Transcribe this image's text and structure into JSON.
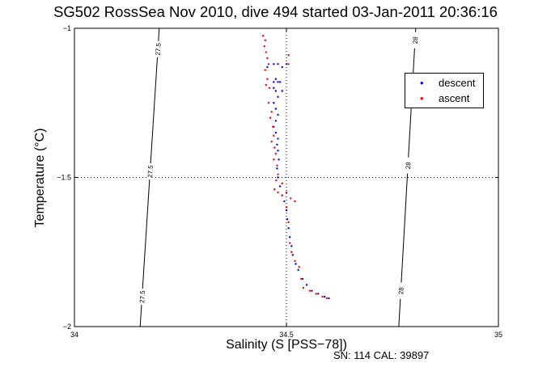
{
  "title": "SG502 RossSea Nov 2010, dive 494 started 03-Jan-2011 20:36:16",
  "footnote": "SN: 114  CAL: 39897",
  "chart_data": {
    "type": "scatter",
    "xlabel": "Salinity (S [PSS−78])",
    "ylabel": "Temperature (°C)",
    "xlim": [
      34,
      35
    ],
    "ylim": [
      -2,
      -1
    ],
    "xticks": [
      34,
      34.5,
      35
    ],
    "yticks": [
      -2,
      -1.5,
      -1
    ],
    "xtick_labels": [
      "34",
      "34.5",
      "35"
    ],
    "ytick_labels": [
      "−2",
      "−1.5",
      "−1"
    ],
    "grid": "dotted lines at x=34.5 and y=-1.5",
    "legend_position": "top-right",
    "density_contours": [
      {
        "label": "27.5",
        "points": [
          [
            34.155,
            -2
          ],
          [
            34.2,
            -1
          ]
        ],
        "label_y": [
          -1.07,
          -1.48,
          -1.9
        ]
      },
      {
        "label": "28",
        "points": [
          [
            34.765,
            -2
          ],
          [
            34.805,
            -1
          ]
        ],
        "label_y": [
          -1.04,
          -1.46,
          -1.88
        ]
      }
    ],
    "series": [
      {
        "name": "descent",
        "color": "#0000ff",
        "marker": ".",
        "points": [
          [
            34.455,
            -1.13
          ],
          [
            34.47,
            -1.12
          ],
          [
            34.48,
            -1.12
          ],
          [
            34.49,
            -1.13
          ],
          [
            34.5,
            -1.12
          ],
          [
            34.475,
            -1.17
          ],
          [
            34.47,
            -1.18
          ],
          [
            34.48,
            -1.18
          ],
          [
            34.485,
            -1.18
          ],
          [
            34.47,
            -1.2
          ],
          [
            34.475,
            -1.21
          ],
          [
            34.49,
            -1.21
          ],
          [
            34.48,
            -1.23
          ],
          [
            34.47,
            -1.25
          ],
          [
            34.475,
            -1.27
          ],
          [
            34.48,
            -1.29
          ],
          [
            34.475,
            -1.31
          ],
          [
            34.47,
            -1.33
          ],
          [
            34.475,
            -1.35
          ],
          [
            34.48,
            -1.37
          ],
          [
            34.478,
            -1.39
          ],
          [
            34.48,
            -1.41
          ],
          [
            34.482,
            -1.44
          ],
          [
            34.478,
            -1.47
          ],
          [
            34.48,
            -1.5
          ],
          [
            34.485,
            -1.53
          ],
          [
            34.49,
            -1.56
          ],
          [
            34.495,
            -1.58
          ],
          [
            34.5,
            -1.61
          ],
          [
            34.502,
            -1.64
          ],
          [
            34.505,
            -1.67
          ],
          [
            34.508,
            -1.7
          ],
          [
            34.512,
            -1.73
          ],
          [
            34.515,
            -1.76
          ],
          [
            34.522,
            -1.79
          ],
          [
            34.528,
            -1.81
          ],
          [
            34.538,
            -1.84
          ],
          [
            34.548,
            -1.86
          ],
          [
            34.56,
            -1.88
          ],
          [
            34.575,
            -1.89
          ],
          [
            34.59,
            -1.9
          ],
          [
            34.6,
            -1.905
          ]
        ]
      },
      {
        "name": "ascent",
        "color": "#ff0000",
        "marker": ".",
        "points": [
          [
            34.445,
            -1.025
          ],
          [
            34.45,
            -1.04
          ],
          [
            34.448,
            -1.06
          ],
          [
            34.452,
            -1.08
          ],
          [
            34.455,
            -1.1
          ],
          [
            34.458,
            -1.12
          ],
          [
            34.45,
            -1.14
          ],
          [
            34.455,
            -1.17
          ],
          [
            34.452,
            -1.19
          ],
          [
            34.46,
            -1.2
          ],
          [
            34.505,
            -1.09
          ],
          [
            34.505,
            -1.12
          ],
          [
            34.458,
            -1.25
          ],
          [
            34.465,
            -1.28
          ],
          [
            34.462,
            -1.3
          ],
          [
            34.468,
            -1.33
          ],
          [
            34.47,
            -1.36
          ],
          [
            34.465,
            -1.38
          ],
          [
            34.472,
            -1.4
          ],
          [
            34.475,
            -1.42
          ],
          [
            34.47,
            -1.44
          ],
          [
            34.478,
            -1.46
          ],
          [
            34.48,
            -1.49
          ],
          [
            34.476,
            -1.51
          ],
          [
            34.472,
            -1.54
          ],
          [
            34.48,
            -1.55
          ],
          [
            34.49,
            -1.56
          ],
          [
            34.5,
            -1.55
          ],
          [
            34.51,
            -1.57
          ],
          [
            34.52,
            -1.58
          ],
          [
            34.49,
            -1.52
          ],
          [
            34.5,
            -1.6
          ],
          [
            34.505,
            -1.65
          ],
          [
            34.508,
            -1.72
          ],
          [
            34.512,
            -1.75
          ],
          [
            34.52,
            -1.78
          ],
          [
            34.53,
            -1.8
          ],
          [
            34.535,
            -1.84
          ],
          [
            34.54,
            -1.87
          ],
          [
            34.555,
            -1.88
          ],
          [
            34.57,
            -1.89
          ],
          [
            34.585,
            -1.9
          ],
          [
            34.595,
            -1.905
          ]
        ]
      }
    ]
  }
}
